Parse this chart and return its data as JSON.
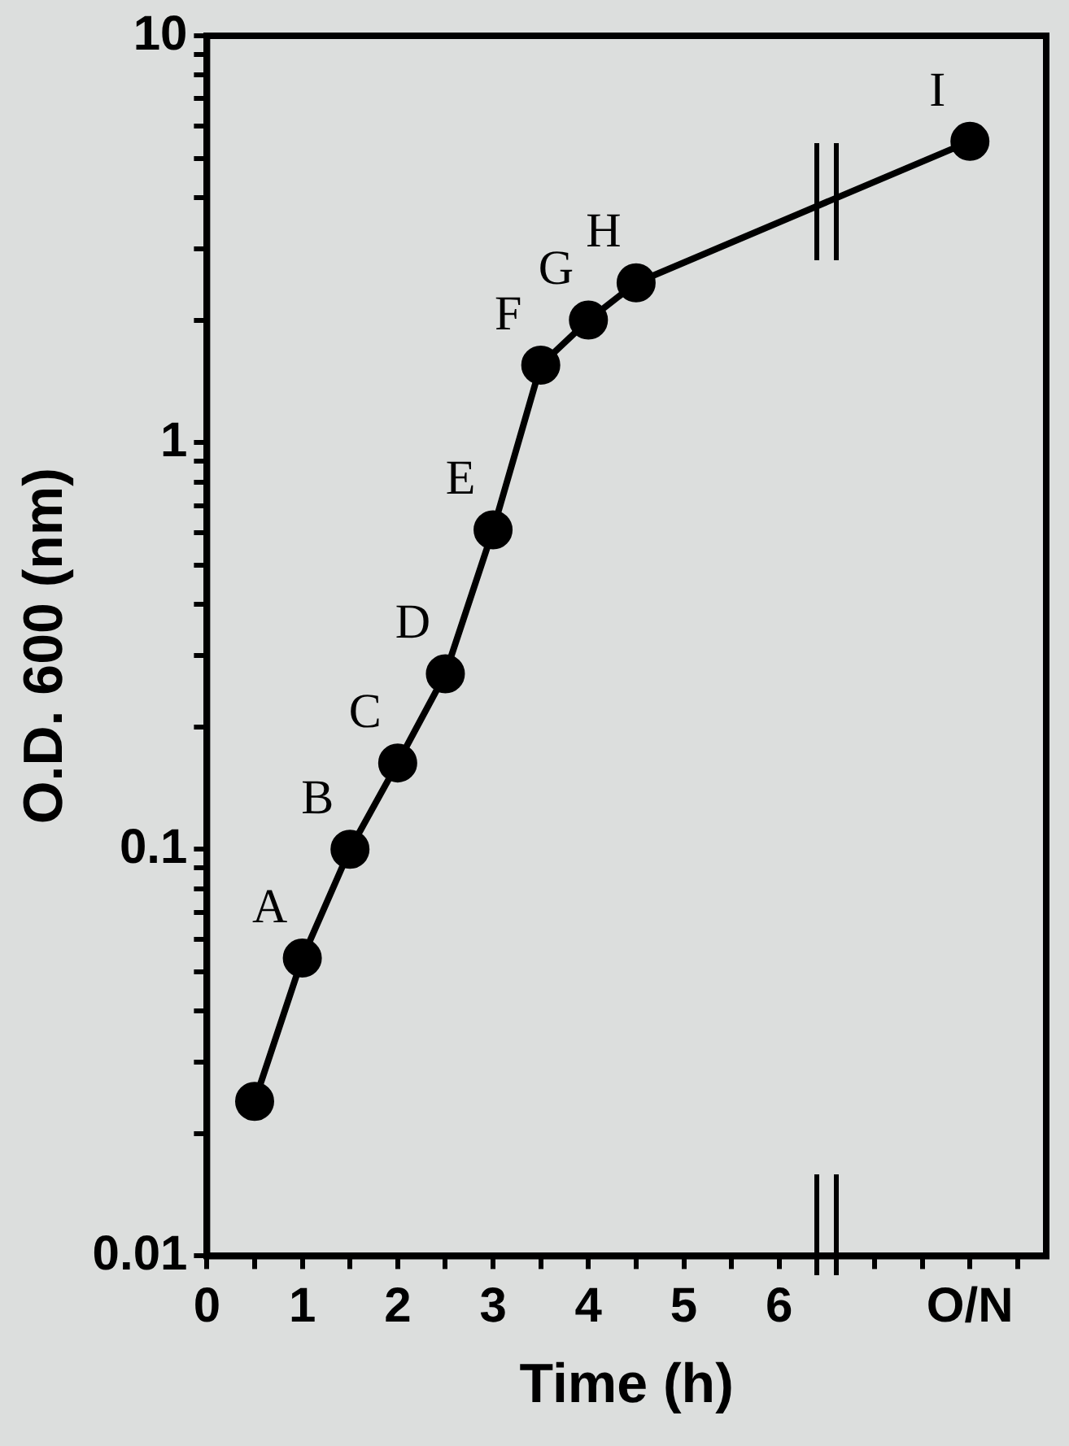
{
  "chart_data": {
    "type": "line",
    "xlabel": "Time (h)",
    "ylabel": "O.D. 600 (nm)",
    "x": [
      0.5,
      1,
      1.5,
      2,
      2.5,
      3,
      3.5,
      4,
      4.5,
      8
    ],
    "values": [
      0.024,
      0.054,
      0.1,
      0.163,
      0.27,
      0.61,
      1.55,
      2.0,
      2.47,
      5.5
    ],
    "color": "#000000",
    "marker": "circle",
    "line_style": "solid",
    "log": "y",
    "grid": false,
    "legend": false,
    "xlim": [
      0,
      8.8
    ],
    "xticks": [
      0,
      {
        "value": 0.5,
        "label": null
      },
      1,
      {
        "value": 1.5,
        "label": null
      },
      2,
      {
        "value": 2.5,
        "label": null
      },
      3,
      {
        "value": 3.5,
        "label": null
      },
      4,
      {
        "value": 4.5,
        "label": null
      },
      5,
      {
        "value": 5.5,
        "label": null
      },
      6,
      {
        "value": 7,
        "label": null
      },
      {
        "value": 7.5,
        "label": null
      },
      {
        "value": 8,
        "label": "O/N"
      },
      {
        "value": 8.5,
        "label": null
      }
    ],
    "ylim": [
      0.01,
      10
    ],
    "yticks": [
      0.01,
      {
        "value": 0.02,
        "label": null
      },
      {
        "value": 0.03,
        "label": null
      },
      {
        "value": 0.04,
        "label": null
      },
      {
        "value": 0.05,
        "label": null
      },
      {
        "value": 0.06,
        "label": null
      },
      {
        "value": 0.07,
        "label": null
      },
      {
        "value": 0.08,
        "label": null
      },
      {
        "value": 0.09,
        "label": null
      },
      0.1,
      {
        "value": 0.2,
        "label": null
      },
      {
        "value": 0.3,
        "label": null
      },
      {
        "value": 0.4,
        "label": null
      },
      {
        "value": 0.5,
        "label": null
      },
      {
        "value": 0.6,
        "label": null
      },
      {
        "value": 0.7,
        "label": null
      },
      {
        "value": 0.8,
        "label": null
      },
      {
        "value": 0.9,
        "label": null
      },
      1,
      {
        "value": 2,
        "label": null
      },
      {
        "value": 3,
        "label": null
      },
      {
        "value": 4,
        "label": null
      },
      {
        "value": 5,
        "label": null
      },
      {
        "value": 6,
        "label": null
      },
      {
        "value": 7,
        "label": null
      },
      {
        "value": 8,
        "label": null
      },
      {
        "value": 9,
        "label": null
      },
      10
    ],
    "annotations": [
      {
        "text": "A",
        "x": 1,
        "y": 0.054
      },
      {
        "text": "B",
        "x": 1.5,
        "y": 0.1
      },
      {
        "text": "C",
        "x": 2,
        "y": 0.163
      },
      {
        "text": "D",
        "x": 2.5,
        "y": 0.27
      },
      {
        "text": "E",
        "x": 3,
        "y": 0.61
      },
      {
        "text": "F",
        "x": 3.5,
        "y": 1.55
      },
      {
        "text": "G",
        "x": 4,
        "y": 2.0
      },
      {
        "text": "H",
        "x": 4.5,
        "y": 2.47
      },
      {
        "text": "I",
        "x": 8,
        "y": 5.5
      }
    ]
  }
}
